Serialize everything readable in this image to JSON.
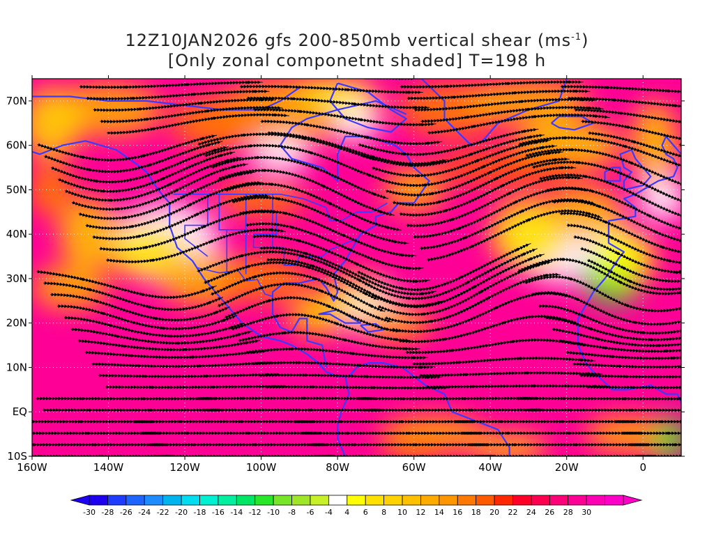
{
  "title": {
    "line1_main": "12Z10JAN2026 gfs 200-850mb vertical shear (ms",
    "line1_sup": "-1",
    "line1_end": ")",
    "line2": "[Only zonal componetnt shaded] T=198 h"
  },
  "map": {
    "lon_range": [
      -160,
      10
    ],
    "lat_range": [
      -10,
      75
    ],
    "lat_labels": [
      {
        "lat": 70,
        "label": "70N"
      },
      {
        "lat": 60,
        "label": "60N"
      },
      {
        "lat": 50,
        "label": "50N"
      },
      {
        "lat": 40,
        "label": "40N"
      },
      {
        "lat": 30,
        "label": "30N"
      },
      {
        "lat": 20,
        "label": "20N"
      },
      {
        "lat": 10,
        "label": "10N"
      },
      {
        "lat": 0,
        "label": "EQ"
      },
      {
        "lat": -10,
        "label": "10S"
      }
    ],
    "lon_labels": [
      {
        "lon": -160,
        "label": "160W"
      },
      {
        "lon": -140,
        "label": "140W"
      },
      {
        "lon": -120,
        "label": "120W"
      },
      {
        "lon": -100,
        "label": "100W"
      },
      {
        "lon": -80,
        "label": "80W"
      },
      {
        "lon": -60,
        "label": "60W"
      },
      {
        "lon": -40,
        "label": "40W"
      },
      {
        "lon": -20,
        "label": "20W"
      },
      {
        "lon": 0,
        "label": "0"
      }
    ],
    "coastline_color": "#3a3aff",
    "streamline_color": "#000000"
  },
  "colorbar": {
    "labels": [
      "-30",
      "-28",
      "-26",
      "-24",
      "-22",
      "-20",
      "-18",
      "-16",
      "-14",
      "-12",
      "-10",
      "-8",
      "-6",
      "-4",
      "4",
      "6",
      "8",
      "10",
      "12",
      "14",
      "16",
      "18",
      "20",
      "22",
      "24",
      "26",
      "28",
      "30"
    ],
    "colors": [
      "#1e00f0",
      "#1e3cff",
      "#1e64ff",
      "#1e8cff",
      "#00b4f0",
      "#00dcf0",
      "#00f0d2",
      "#00f0a0",
      "#00e664",
      "#28e628",
      "#78e628",
      "#a0e628",
      "#c8f028",
      "#ffffff",
      "#ffff00",
      "#ffe100",
      "#ffd200",
      "#ffc000",
      "#ffaa00",
      "#ff9600",
      "#ff7800",
      "#ff5a00",
      "#ff2800",
      "#ff0028",
      "#ff0050",
      "#ff0078",
      "#ff0096",
      "#ff00b4",
      "#ff00c8"
    ]
  }
}
